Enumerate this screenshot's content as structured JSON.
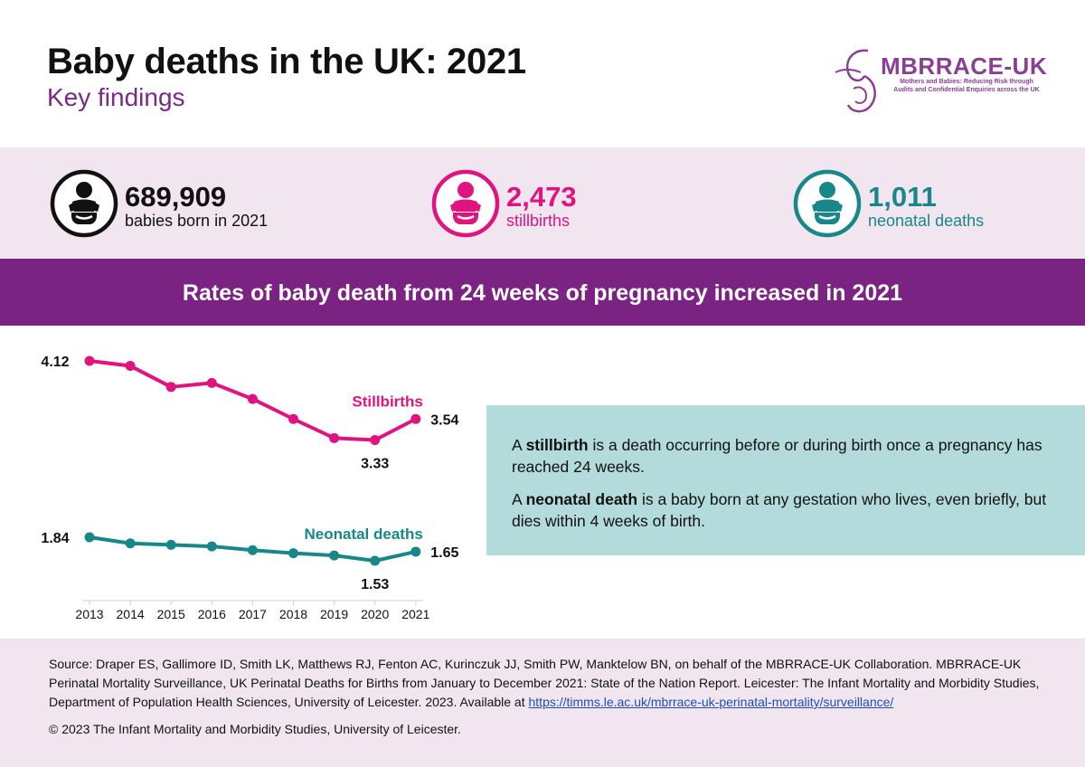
{
  "header": {
    "title": "Baby deaths in the UK: 2021",
    "subtitle": "Key findings"
  },
  "logo": {
    "name": "MBRRACE-UK",
    "tagline": "Mothers and Babies: Reducing Risk through Audits and Confidential Enquiries across the UK",
    "color": "#8a3f95"
  },
  "stats": [
    {
      "value": "689,909",
      "label": "babies born in 2021",
      "color": "#111111",
      "icon": "baby-icon"
    },
    {
      "value": "2,473",
      "label": "stillbirths",
      "color": "#e0137f",
      "icon": "baby-icon"
    },
    {
      "value": "1,011",
      "label": "neonatal deaths",
      "color": "#17878a",
      "icon": "baby-icon"
    }
  ],
  "banner": {
    "text": "Rates of baby death from 24 weeks of pregnancy increased in 2021",
    "color": "#7b2383"
  },
  "chart_data": {
    "type": "line",
    "x": [
      "2013",
      "2014",
      "2015",
      "2016",
      "2017",
      "2018",
      "2019",
      "2020",
      "2021"
    ],
    "series": [
      {
        "name": "Stillbirths",
        "values": [
          4.12,
          4.07,
          3.86,
          3.9,
          3.74,
          3.54,
          3.35,
          3.33,
          3.54
        ],
        "color": "#e0137f"
      },
      {
        "name": "Neonatal deaths",
        "values": [
          1.84,
          1.76,
          1.74,
          1.72,
          1.67,
          1.63,
          1.6,
          1.53,
          1.65
        ],
        "color": "#17878a"
      }
    ],
    "value_labels": [
      {
        "text": "4.12",
        "series": 0,
        "index": 0,
        "pos": "left"
      },
      {
        "text": "3.33",
        "series": 0,
        "index": 7,
        "pos": "below"
      },
      {
        "text": "3.54",
        "series": 0,
        "index": 8,
        "pos": "right"
      },
      {
        "text": "1.84",
        "series": 1,
        "index": 0,
        "pos": "left"
      },
      {
        "text": "1.53",
        "series": 1,
        "index": 7,
        "pos": "below"
      },
      {
        "text": "1.65",
        "series": 1,
        "index": 8,
        "pos": "right"
      }
    ],
    "title": "",
    "xlabel": "",
    "ylabel": "",
    "grid": false,
    "legend": "inline series labels"
  },
  "definitions": [
    {
      "term": "stillbirth",
      "before": "A ",
      "after": " is a death occurring before or during birth once a pregnancy has reached 24 weeks."
    },
    {
      "term": "neonatal death",
      "before": "A ",
      "after": " is a baby born at any gestation who lives, even briefly, but dies within 4 weeks of birth."
    }
  ],
  "footer": {
    "source": "Source: Draper ES, Gallimore ID, Smith LK, Matthews RJ, Fenton AC, Kurinczuk JJ, Smith PW, Manktelow BN, on behalf of the MBRRACE-UK Collaboration. MBRRACE-UK Perinatal Mortality Surveillance, UK Perinatal Deaths for Births from January to December 2021: State of the Nation Report. Leicester: The Infant Mortality and Morbidity Studies, Department of Population Health Sciences, University of Leicester. 2023. Available at ",
    "link": "https://timms.le.ac.uk/mbrrace-uk-perinatal-mortality/surveillance/",
    "copyright": "© 2023 The Infant Mortality and Morbidity Studies, University of Leicester."
  }
}
